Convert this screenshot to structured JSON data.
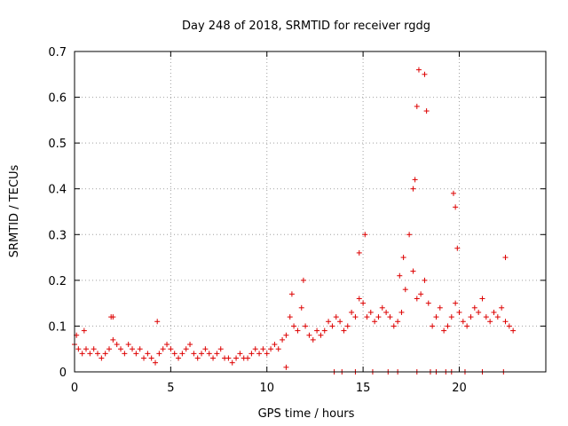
{
  "chart_data": {
    "type": "scatter",
    "title": "Day 248 of 2018, SRMTID for receiver rgdg",
    "xlabel": "GPS time / hours",
    "ylabel": "SRMTID / TECUs",
    "xlim": [
      0,
      24.5
    ],
    "ylim": [
      0,
      0.7
    ],
    "xticks": [
      0,
      5,
      10,
      15,
      20
    ],
    "xtick_labels": [
      "0",
      "5",
      "10",
      "15",
      "20"
    ],
    "yticks": [
      0,
      0.1,
      0.2,
      0.3,
      0.4,
      0.5,
      0.6,
      0.7
    ],
    "ytick_labels": [
      "0",
      "0.1",
      "0.2",
      "0.3",
      "0.4",
      "0.5",
      "0.6",
      "0.7"
    ],
    "grid": true,
    "marker": "+",
    "color": "#dd0000",
    "series": [
      {
        "name": "SRMTID",
        "x": [
          0.0,
          0.2,
          0.4,
          0.6,
          0.8,
          1.0,
          1.2,
          1.4,
          1.6,
          1.8,
          2.0,
          2.2,
          2.4,
          2.6,
          2.8,
          3.0,
          3.2,
          3.4,
          3.6,
          3.8,
          4.0,
          4.2,
          4.4,
          4.6,
          4.8,
          5.0,
          5.2,
          5.4,
          5.6,
          5.8,
          6.0,
          6.2,
          6.4,
          6.6,
          6.8,
          7.0,
          7.2,
          7.4,
          7.6,
          7.8,
          8.0,
          8.2,
          8.4,
          8.6,
          8.8,
          9.0,
          9.2,
          9.4,
          9.6,
          9.8,
          10.0,
          10.2,
          10.4,
          10.6,
          10.8,
          11.0,
          11.2,
          11.4,
          11.6,
          11.8,
          12.0,
          12.2,
          12.4,
          12.6,
          12.8,
          13.0,
          13.2,
          13.4,
          13.6,
          13.8,
          14.0,
          14.2,
          14.4,
          14.6,
          14.8,
          15.0,
          15.2,
          15.4,
          15.6,
          15.8,
          16.0,
          16.2,
          16.4,
          16.6,
          16.8,
          17.0,
          17.2,
          17.4,
          17.6,
          17.8,
          18.0,
          18.2,
          18.4,
          18.6,
          18.8,
          19.0,
          19.2,
          19.4,
          19.6,
          19.8,
          20.0,
          20.2,
          20.4,
          20.6,
          20.8,
          21.0,
          21.2,
          21.4,
          21.6,
          21.8,
          22.0,
          22.2,
          22.4,
          22.6,
          22.8,
          0.1,
          0.5,
          1.9,
          2.0,
          4.3,
          11.0,
          11.3,
          11.9,
          14.8,
          15.1,
          16.9,
          17.1,
          17.6,
          17.7,
          17.8,
          17.9,
          18.2,
          18.3,
          19.7,
          19.8,
          19.9,
          22.4,
          13.5,
          13.9,
          14.6,
          15.5,
          16.3,
          16.8,
          17.8,
          18.5,
          18.8,
          19.3,
          19.6,
          20.3,
          21.2,
          22.3
        ],
        "y": [
          0.06,
          0.05,
          0.04,
          0.05,
          0.04,
          0.05,
          0.04,
          0.03,
          0.04,
          0.05,
          0.07,
          0.06,
          0.05,
          0.04,
          0.06,
          0.05,
          0.04,
          0.05,
          0.03,
          0.04,
          0.03,
          0.02,
          0.04,
          0.05,
          0.06,
          0.05,
          0.04,
          0.03,
          0.04,
          0.05,
          0.06,
          0.04,
          0.03,
          0.04,
          0.05,
          0.04,
          0.03,
          0.04,
          0.05,
          0.03,
          0.03,
          0.02,
          0.03,
          0.04,
          0.03,
          0.03,
          0.04,
          0.05,
          0.04,
          0.05,
          0.04,
          0.05,
          0.06,
          0.05,
          0.07,
          0.08,
          0.12,
          0.1,
          0.09,
          0.14,
          0.1,
          0.08,
          0.07,
          0.09,
          0.08,
          0.09,
          0.11,
          0.1,
          0.12,
          0.11,
          0.09,
          0.1,
          0.13,
          0.12,
          0.16,
          0.15,
          0.12,
          0.13,
          0.11,
          0.12,
          0.14,
          0.13,
          0.12,
          0.1,
          0.11,
          0.13,
          0.18,
          0.3,
          0.22,
          0.16,
          0.17,
          0.2,
          0.15,
          0.1,
          0.12,
          0.14,
          0.09,
          0.1,
          0.12,
          0.15,
          0.13,
          0.11,
          0.1,
          0.12,
          0.14,
          0.13,
          0.16,
          0.12,
          0.11,
          0.13,
          0.12,
          0.14,
          0.11,
          0.1,
          0.09,
          0.08,
          0.09,
          0.12,
          0.12,
          0.11,
          0.01,
          0.17,
          0.2,
          0.26,
          0.3,
          0.21,
          0.25,
          0.4,
          0.42,
          0.58,
          0.66,
          0.65,
          0.57,
          0.39,
          0.36,
          0.27,
          0.25,
          0.0,
          0.0,
          0.0,
          0.0,
          0.0,
          0.0,
          0.0,
          0.0,
          0.0,
          0.0,
          0.0,
          0.0,
          0.0,
          0.0
        ]
      }
    ]
  }
}
